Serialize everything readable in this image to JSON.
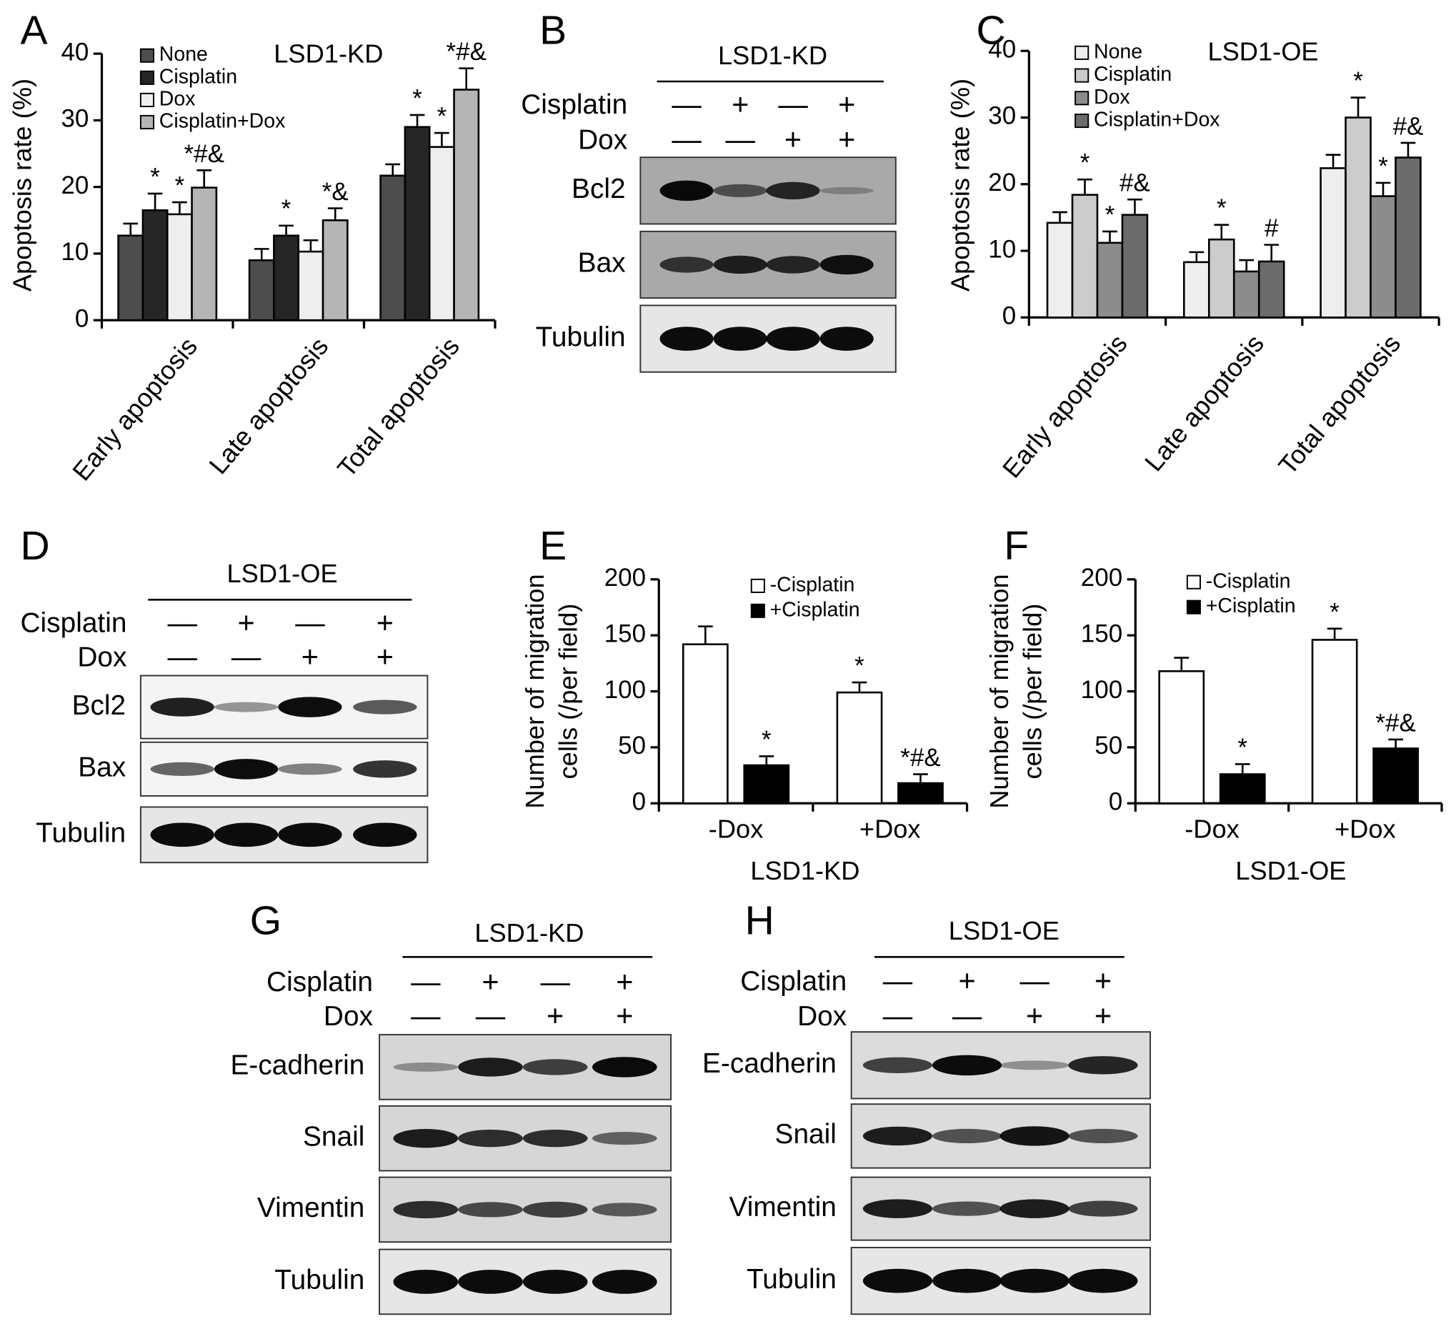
{
  "chart_data": [
    {
      "type": "bar",
      "panel": "A",
      "title": "LSD1-KD",
      "ylabel": "Apoptosis rate (%)",
      "categories": [
        "Early apoptosis",
        "Late apoptosis",
        "Total apoptosis"
      ],
      "series": [
        {
          "name": "None",
          "color": "#4d4d4d",
          "values": [
            12.7,
            9,
            21.7
          ],
          "errors": [
            1.8,
            1.7,
            1.7
          ],
          "annotations": [
            null,
            null,
            null
          ]
        },
        {
          "name": "Cisplatin",
          "color": "#262626",
          "values": [
            16.5,
            12.7,
            29
          ],
          "errors": [
            2.5,
            1.5,
            1.8
          ],
          "annotations": [
            "*",
            "*",
            "*"
          ]
        },
        {
          "name": "Dox",
          "color": "#eeeeee",
          "values": [
            15.9,
            10.3,
            26
          ],
          "errors": [
            1.8,
            1.7,
            2.1
          ],
          "annotations": [
            "*",
            null,
            "*"
          ]
        },
        {
          "name": "Cisplatin+Dox",
          "color": "#b5b5b5",
          "values": [
            19.9,
            15,
            34.6
          ],
          "errors": [
            2.6,
            1.8,
            3.2
          ],
          "annotations": [
            "*#&",
            "*&",
            "*#&"
          ]
        }
      ],
      "ylim": [
        0,
        40
      ],
      "yticks": [
        0,
        10,
        20,
        30,
        40
      ]
    },
    {
      "type": "bar",
      "panel": "C",
      "title": "LSD1-OE",
      "ylabel": "Apoptosis rate (%)",
      "categories": [
        "Early apoptosis",
        "Late apoptosis",
        "Total apoptosis"
      ],
      "series": [
        {
          "name": "None",
          "color": "#eeeeee",
          "values": [
            14.2,
            8.3,
            22.4
          ],
          "errors": [
            1.6,
            1.5,
            2
          ],
          "annotations": [
            null,
            null,
            null
          ]
        },
        {
          "name": "Cisplatin",
          "color": "#cccccc",
          "values": [
            18.4,
            11.7,
            30
          ],
          "errors": [
            2.3,
            2.2,
            3
          ],
          "annotations": [
            "*",
            "*",
            "*"
          ]
        },
        {
          "name": "Dox",
          "color": "#8c8c8c",
          "values": [
            11.2,
            6.9,
            18.2
          ],
          "errors": [
            1.7,
            1.7,
            2
          ],
          "annotations": [
            "*",
            null,
            "*"
          ]
        },
        {
          "name": "Cisplatin+Dox",
          "color": "#6b6b6b",
          "values": [
            15.4,
            8.4,
            24
          ],
          "errors": [
            2.3,
            2.5,
            2.2
          ],
          "annotations": [
            "#&",
            "#",
            "#&"
          ]
        }
      ],
      "ylim": [
        0,
        40
      ],
      "yticks": [
        0,
        10,
        20,
        30,
        40
      ]
    },
    {
      "type": "bar",
      "panel": "E",
      "xlabel": "LSD1-KD",
      "ylabel": [
        "Number of migration",
        "cells (/per field)"
      ],
      "categories": [
        "-Dox",
        "+Dox"
      ],
      "series": [
        {
          "name": "-Cisplatin",
          "color": "#ffffff",
          "values": [
            142,
            99
          ],
          "errors": [
            16,
            9
          ],
          "annotations": [
            null,
            "*"
          ]
        },
        {
          "name": "+Cisplatin",
          "color": "#000000",
          "values": [
            34,
            18
          ],
          "errors": [
            8,
            8
          ],
          "annotations": [
            "*",
            "*#&"
          ]
        }
      ],
      "ylim": [
        0,
        200
      ],
      "yticks": [
        0,
        50,
        100,
        150,
        200
      ]
    },
    {
      "type": "bar",
      "panel": "F",
      "xlabel": "LSD1-OE",
      "ylabel": [
        "Number of migration",
        "cells (/per field)"
      ],
      "categories": [
        "-Dox",
        "+Dox"
      ],
      "series": [
        {
          "name": "-Cisplatin",
          "color": "#ffffff",
          "values": [
            118,
            146
          ],
          "errors": [
            12,
            10
          ],
          "annotations": [
            null,
            "*"
          ]
        },
        {
          "name": "+Cisplatin",
          "color": "#000000",
          "values": [
            26,
            49
          ],
          "errors": [
            9,
            8
          ],
          "annotations": [
            "*",
            "*#&"
          ]
        }
      ],
      "ylim": [
        0,
        200
      ],
      "yticks": [
        0,
        50,
        100,
        150,
        200
      ]
    }
  ],
  "blots": [
    {
      "panel": "B",
      "title": "LSD1-KD",
      "conditions": [
        {
          "label": "Cisplatin",
          "signs": [
            "—",
            "+",
            "—",
            "+"
          ]
        },
        {
          "label": "Dox",
          "signs": [
            "—",
            "—",
            "+",
            "+"
          ]
        }
      ],
      "bands": [
        "Bcl2",
        "Bax",
        "Tubulin"
      ]
    },
    {
      "panel": "D",
      "title": "LSD1-OE",
      "conditions": [
        {
          "label": "Cisplatin",
          "signs": [
            "—",
            "+",
            "—",
            "+"
          ]
        },
        {
          "label": "Dox",
          "signs": [
            "—",
            "—",
            "+",
            "+"
          ]
        }
      ],
      "bands": [
        "Bcl2",
        "Bax",
        "Tubulin"
      ]
    },
    {
      "panel": "G",
      "title": "LSD1-KD",
      "conditions": [
        {
          "label": "Cisplatin",
          "signs": [
            "—",
            "+",
            "—",
            "+"
          ]
        },
        {
          "label": "Dox",
          "signs": [
            "—",
            "—",
            "+",
            "+"
          ]
        }
      ],
      "bands": [
        "E-cadherin",
        "Snail",
        "Vimentin",
        "Tubulin"
      ]
    },
    {
      "panel": "H",
      "title": "LSD1-OE",
      "conditions": [
        {
          "label": "Cisplatin",
          "signs": [
            "—",
            "+",
            "—",
            "+"
          ]
        },
        {
          "label": "Dox",
          "signs": [
            "—",
            "—",
            "+",
            "+"
          ]
        }
      ],
      "bands": [
        "E-cadherin",
        "Snail",
        "Vimentin",
        "Tubulin"
      ]
    }
  ]
}
